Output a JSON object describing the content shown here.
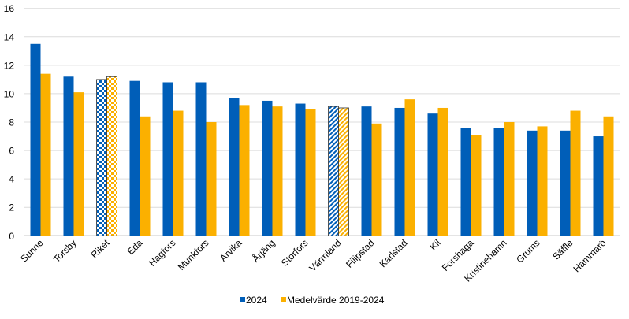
{
  "chart_data": {
    "type": "bar",
    "title": "",
    "xlabel": "",
    "ylabel": "",
    "ylim": [
      0,
      16
    ],
    "yticks": [
      0,
      2,
      4,
      6,
      8,
      10,
      12,
      14,
      16
    ],
    "grid": true,
    "legend_placement": "bottom",
    "categories": [
      "Sunne",
      "Torsby",
      "Riket",
      "Eda",
      "Hagfors",
      "Munkfors",
      "Arvika",
      "Årjäng",
      "Storfors",
      "Värmland",
      "Filipstad",
      "Karlstad",
      "Kil",
      "Forshaga",
      "Kristinehamn",
      "Grums",
      "Säffle",
      "Hammarö"
    ],
    "highlighted": {
      "Riket": "checkerboard",
      "Värmland": "diagonal-stripes"
    },
    "series": [
      {
        "name": "2024",
        "color": "#005EB8",
        "values": [
          13.5,
          11.2,
          11.0,
          10.9,
          10.8,
          10.8,
          9.7,
          9.5,
          9.3,
          9.1,
          9.1,
          9.0,
          8.6,
          7.6,
          7.6,
          7.4,
          7.4,
          7.0
        ]
      },
      {
        "name": "Medelvärde 2019-2024",
        "color": "#FBB000",
        "values": [
          11.4,
          10.1,
          11.2,
          8.4,
          8.8,
          8.0,
          9.2,
          9.1,
          8.9,
          9.0,
          7.9,
          9.6,
          9.0,
          7.1,
          8.0,
          7.7,
          8.8,
          8.4
        ]
      }
    ]
  }
}
